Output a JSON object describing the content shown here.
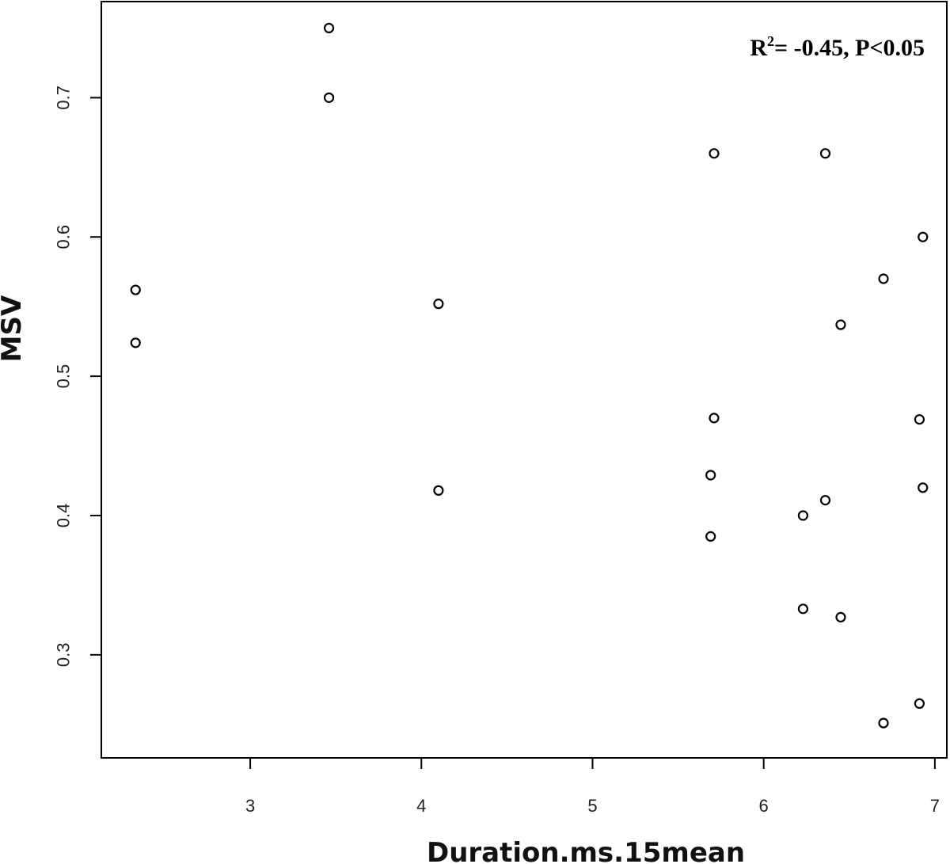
{
  "chart_data": {
    "type": "scatter",
    "xlabel": "Duration.ms.15mean",
    "ylabel": "MSV",
    "xlim": [
      2.13,
      7.07
    ],
    "ylim": [
      0.226,
      0.769
    ],
    "x_ticks": [
      3,
      4,
      5,
      6,
      7
    ],
    "y_ticks": [
      0.3,
      0.4,
      0.5,
      0.6,
      0.7
    ],
    "annotation": {
      "r_prefix": "R",
      "r_superscript": "2",
      "rest": "= -0.45, P<0.05",
      "position": "top-right"
    },
    "grid": false,
    "points": [
      {
        "x": 2.33,
        "y": 0.562
      },
      {
        "x": 2.33,
        "y": 0.524
      },
      {
        "x": 3.46,
        "y": 0.75
      },
      {
        "x": 3.46,
        "y": 0.7
      },
      {
        "x": 4.1,
        "y": 0.552
      },
      {
        "x": 4.1,
        "y": 0.418
      },
      {
        "x": 5.71,
        "y": 0.66
      },
      {
        "x": 5.71,
        "y": 0.47
      },
      {
        "x": 5.69,
        "y": 0.429
      },
      {
        "x": 5.69,
        "y": 0.385
      },
      {
        "x": 6.36,
        "y": 0.66
      },
      {
        "x": 6.36,
        "y": 0.411
      },
      {
        "x": 6.23,
        "y": 0.4
      },
      {
        "x": 6.23,
        "y": 0.333
      },
      {
        "x": 6.45,
        "y": 0.537
      },
      {
        "x": 6.45,
        "y": 0.327
      },
      {
        "x": 6.7,
        "y": 0.57
      },
      {
        "x": 6.7,
        "y": 0.251
      },
      {
        "x": 6.91,
        "y": 0.469
      },
      {
        "x": 6.91,
        "y": 0.265
      },
      {
        "x": 6.93,
        "y": 0.6
      },
      {
        "x": 6.93,
        "y": 0.42
      }
    ]
  }
}
